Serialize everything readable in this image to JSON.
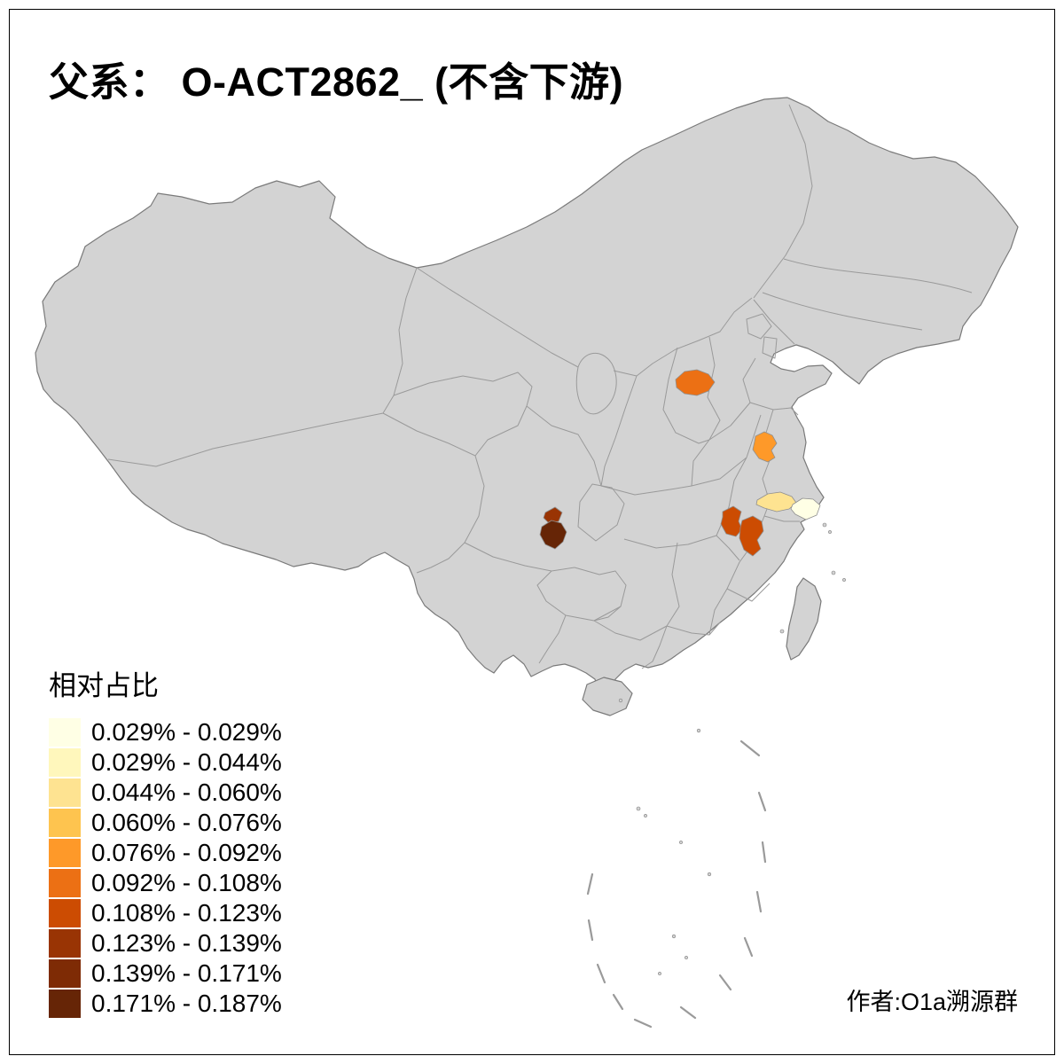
{
  "title": "父系： O-ACT2862_ (不含下游)",
  "author": "作者:O1a溯源群",
  "map": {
    "land_fill": "#d3d3d3",
    "outline_color": "#7a7a7a",
    "border_color": "#9a9a9a",
    "patch_stroke": "#8f8f8f",
    "background": "#ffffff",
    "patches": [
      {
        "id": "patch-1",
        "color": "#EC7014",
        "range": "0.092% - 0.108%"
      },
      {
        "id": "patch-2",
        "color": "#FE9929",
        "range": "0.076% - 0.092%"
      },
      {
        "id": "patch-3",
        "color": "#FEE391",
        "range": "0.044% - 0.060%"
      },
      {
        "id": "patch-4",
        "color": "#FFFFE5",
        "range": "0.029% - 0.029%"
      },
      {
        "id": "patch-5",
        "color": "#CC4C02",
        "range": "0.108% - 0.123%"
      },
      {
        "id": "patch-6",
        "color": "#CC4C02",
        "range": "0.108% - 0.123%"
      },
      {
        "id": "patch-7",
        "color": "#993404",
        "range": "0.123% - 0.139%"
      },
      {
        "id": "patch-8",
        "color": "#662506",
        "range": "0.171% - 0.187%"
      }
    ]
  },
  "legend": {
    "title": "相对占比",
    "items": [
      {
        "label": "0.029% - 0.029%",
        "color": "#FFFFE5"
      },
      {
        "label": "0.029% - 0.044%",
        "color": "#FFF7BC"
      },
      {
        "label": "0.044% - 0.060%",
        "color": "#FEE391"
      },
      {
        "label": "0.060% - 0.076%",
        "color": "#FEC44F"
      },
      {
        "label": "0.076% - 0.092%",
        "color": "#FE9929"
      },
      {
        "label": "0.092% - 0.108%",
        "color": "#EC7014"
      },
      {
        "label": "0.108% - 0.123%",
        "color": "#CC4C02"
      },
      {
        "label": "0.123% - 0.139%",
        "color": "#993404"
      },
      {
        "label": "0.139% - 0.171%",
        "color": "#7E2B05"
      },
      {
        "label": "0.171% - 0.187%",
        "color": "#662506"
      }
    ]
  }
}
